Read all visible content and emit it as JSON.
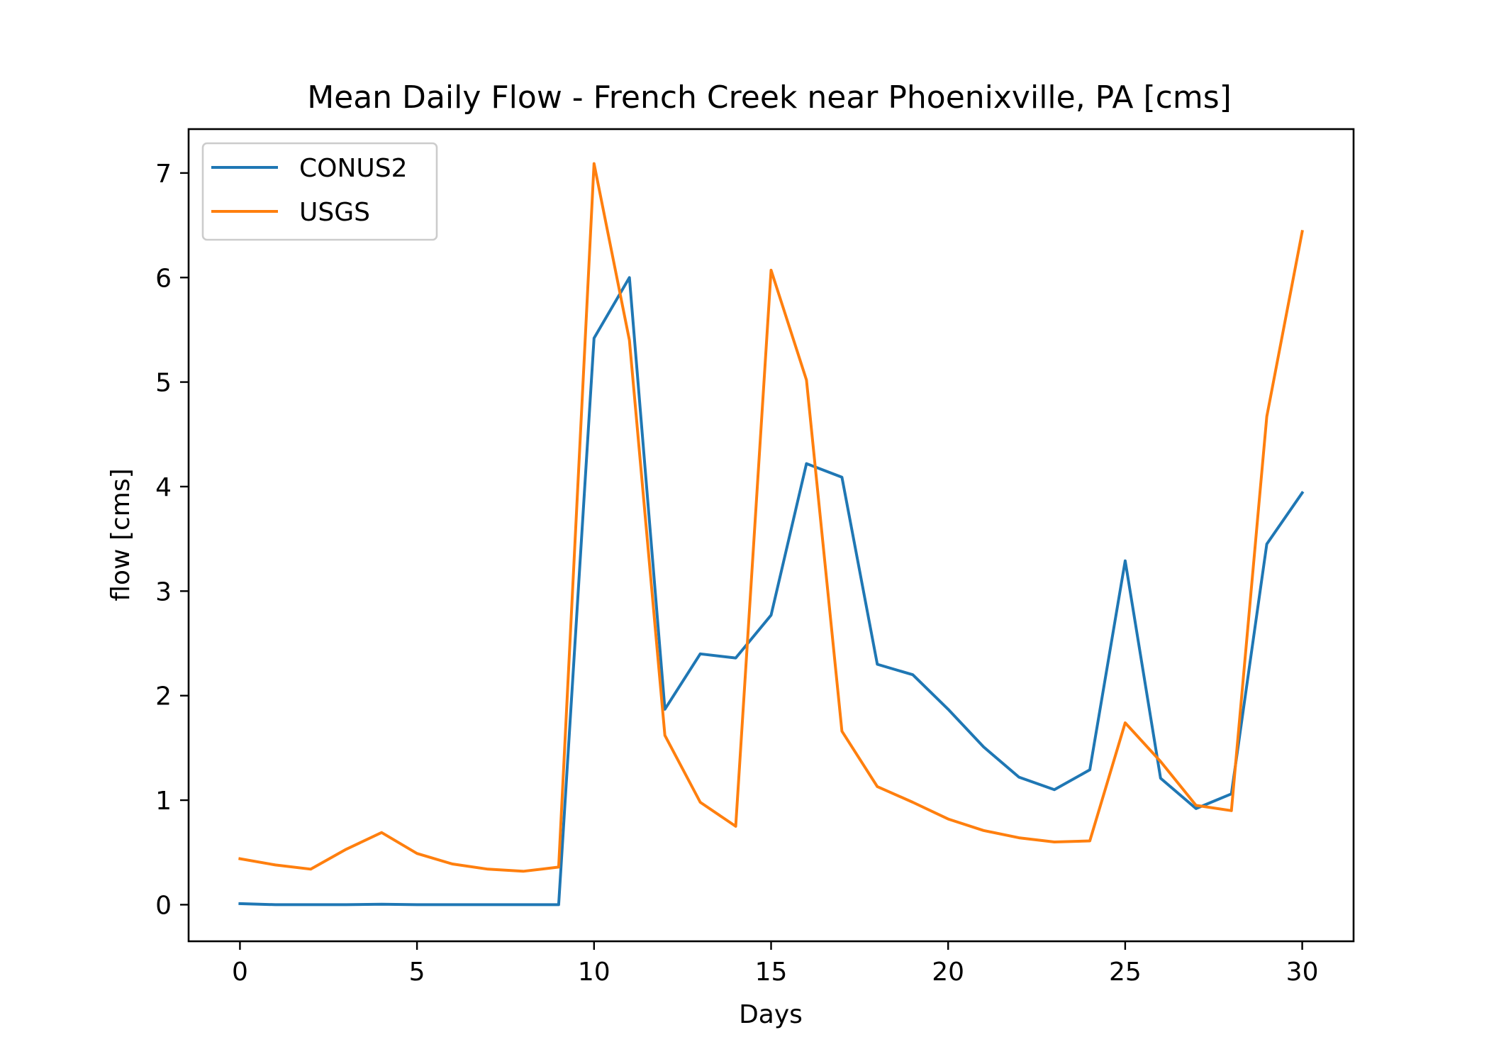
{
  "chart_data": {
    "type": "line",
    "title": "Mean Daily Flow - French Creek near Phoenixville, PA [cms]",
    "xlabel": "Days",
    "ylabel": "flow [cms]",
    "xlim": [
      -1.45,
      31.45
    ],
    "ylim": [
      -0.35,
      7.42
    ],
    "xticks": [
      0,
      5,
      10,
      15,
      20,
      25,
      30
    ],
    "yticks": [
      0,
      1,
      2,
      3,
      4,
      5,
      6,
      7
    ],
    "grid": false,
    "legend": "upper left",
    "x": [
      0,
      1,
      2,
      3,
      4,
      5,
      6,
      7,
      8,
      9,
      10,
      11,
      12,
      13,
      14,
      15,
      16,
      17,
      18,
      19,
      20,
      21,
      22,
      23,
      24,
      25,
      26,
      27,
      28,
      29,
      30
    ],
    "series": [
      {
        "name": "CONUS2",
        "color": "#1f77b4",
        "values": [
          0.01,
          0.0,
          0.0,
          0.0,
          0.005,
          0.0,
          0.0,
          0.0,
          0.0,
          0.0,
          5.42,
          6.0,
          1.87,
          2.4,
          2.36,
          2.77,
          4.22,
          4.09,
          2.3,
          2.2,
          1.87,
          1.51,
          1.22,
          1.1,
          1.29,
          3.29,
          1.21,
          0.92,
          1.06,
          3.45,
          3.94
        ]
      },
      {
        "name": "USGS",
        "color": "#ff7f0e",
        "values": [
          0.44,
          0.38,
          0.34,
          0.53,
          0.69,
          0.49,
          0.39,
          0.34,
          0.32,
          0.36,
          7.09,
          5.4,
          1.62,
          0.98,
          0.75,
          6.07,
          5.02,
          1.66,
          1.13,
          0.98,
          0.82,
          0.71,
          0.64,
          0.6,
          0.61,
          1.74,
          1.37,
          0.95,
          0.9,
          4.67,
          6.44
        ]
      }
    ]
  }
}
